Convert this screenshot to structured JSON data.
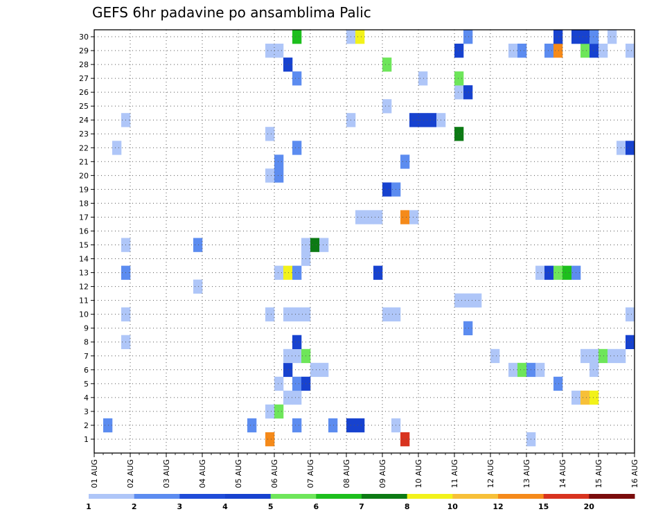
{
  "chart_data": {
    "type": "heatmap",
    "title": "GEFS 6hr padavine po ansamblima Palic",
    "xlabel": "",
    "ylabel": "",
    "x_tick_labels": [
      "01 AUG",
      "02 AUG",
      "03 AUG",
      "04 AUG",
      "05 AUG",
      "06 AUG",
      "07 AUG",
      "08 AUG",
      "09 AUG",
      "10 AUG",
      "11 AUG",
      "12 AUG",
      "13 AUG",
      "14 AUG",
      "15 AUG",
      "16 AUG"
    ],
    "y_tick_labels": [
      "1",
      "2",
      "3",
      "4",
      "5",
      "6",
      "7",
      "8",
      "9",
      "10",
      "11",
      "12",
      "13",
      "14",
      "15",
      "16",
      "17",
      "18",
      "19",
      "20",
      "21",
      "22",
      "23",
      "24",
      "25",
      "26",
      "27",
      "28",
      "29",
      "30"
    ],
    "xlim": [
      0,
      60
    ],
    "ylim": [
      0,
      30
    ],
    "grid": true,
    "colorbar": {
      "labels": [
        "1",
        "2",
        "3",
        "4",
        "5",
        "6",
        "7",
        "8",
        "10",
        "12",
        "15",
        "20"
      ],
      "colors": [
        "#afc6f8",
        "#5c8cf0",
        "#1f4cd8",
        "#1742cf",
        "#6ee65a",
        "#1dbf1d",
        "#0c7a14",
        "#f2f21a",
        "#f7c038",
        "#f58a1a",
        "#d8331f",
        "#7a0c0c"
      ]
    },
    "cells": [
      [
        0.0,
        1,
        "#ffffff"
      ],
      [
        19,
        1,
        "#f58a1a"
      ],
      [
        34,
        1,
        "#d8331f"
      ],
      [
        48,
        1,
        "#afc6f8"
      ],
      [
        17,
        2,
        "#5c8cf0"
      ],
      [
        22,
        2,
        "#5c8cf0"
      ],
      [
        26,
        2,
        "#5c8cf0"
      ],
      [
        28,
        2,
        "#1742cf"
      ],
      [
        29,
        2,
        "#1742cf"
      ],
      [
        33,
        2,
        "#afc6f8"
      ],
      [
        1,
        2,
        "#5c8cf0"
      ],
      [
        19,
        3,
        "#afc6f8"
      ],
      [
        20,
        3,
        "#6ee65a"
      ],
      [
        21,
        4,
        "#afc6f8"
      ],
      [
        22,
        4,
        "#afc6f8"
      ],
      [
        53,
        4,
        "#afc6f8"
      ],
      [
        54,
        4,
        "#f7c038"
      ],
      [
        55,
        4,
        "#f2f21a"
      ],
      [
        20,
        5,
        "#afc6f8"
      ],
      [
        22,
        5,
        "#5c8cf0"
      ],
      [
        23,
        5,
        "#1742cf"
      ],
      [
        51,
        5,
        "#5c8cf0"
      ],
      [
        21,
        6,
        "#1742cf"
      ],
      [
        24,
        6,
        "#afc6f8"
      ],
      [
        25,
        6,
        "#afc6f8"
      ],
      [
        46,
        6,
        "#afc6f8"
      ],
      [
        47,
        6,
        "#6ee65a"
      ],
      [
        48,
        6,
        "#5c8cf0"
      ],
      [
        49,
        6,
        "#afc6f8"
      ],
      [
        55,
        6,
        "#afc6f8"
      ],
      [
        21,
        7,
        "#afc6f8"
      ],
      [
        22,
        7,
        "#afc6f8"
      ],
      [
        23,
        7,
        "#6ee65a"
      ],
      [
        44,
        7,
        "#afc6f8"
      ],
      [
        54,
        7,
        "#afc6f8"
      ],
      [
        55,
        7,
        "#afc6f8"
      ],
      [
        56,
        7,
        "#6ee65a"
      ],
      [
        57,
        7,
        "#afc6f8"
      ],
      [
        58,
        7,
        "#afc6f8"
      ],
      [
        22,
        8,
        "#1742cf"
      ],
      [
        3,
        8,
        "#afc6f8"
      ],
      [
        59,
        8,
        "#1742cf"
      ],
      [
        41,
        9,
        "#5c8cf0"
      ],
      [
        3,
        10,
        "#afc6f8"
      ],
      [
        19,
        10,
        "#afc6f8"
      ],
      [
        21,
        10,
        "#afc6f8"
      ],
      [
        22,
        10,
        "#afc6f8"
      ],
      [
        23,
        10,
        "#afc6f8"
      ],
      [
        32,
        10,
        "#afc6f8"
      ],
      [
        33,
        10,
        "#afc6f8"
      ],
      [
        59,
        10,
        "#afc6f8"
      ],
      [
        40,
        11,
        "#afc6f8"
      ],
      [
        41,
        11,
        "#afc6f8"
      ],
      [
        42,
        11,
        "#afc6f8"
      ],
      [
        11,
        12,
        "#afc6f8"
      ],
      [
        3,
        13,
        "#5c8cf0"
      ],
      [
        20,
        13,
        "#afc6f8"
      ],
      [
        21,
        13,
        "#f2f21a"
      ],
      [
        22,
        13,
        "#5c8cf0"
      ],
      [
        31,
        13,
        "#1742cf"
      ],
      [
        49,
        13,
        "#afc6f8"
      ],
      [
        50,
        13,
        "#1742cf"
      ],
      [
        51,
        13,
        "#6ee65a"
      ],
      [
        52,
        13,
        "#1dbf1d"
      ],
      [
        53,
        13,
        "#5c8cf0"
      ],
      [
        23,
        14,
        "#afc6f8"
      ],
      [
        11,
        15,
        "#5c8cf0"
      ],
      [
        3,
        15,
        "#afc6f8"
      ],
      [
        23,
        15,
        "#afc6f8"
      ],
      [
        24,
        15,
        "#0c7a14"
      ],
      [
        25,
        15,
        "#afc6f8"
      ],
      [
        29,
        17,
        "#afc6f8"
      ],
      [
        30,
        17,
        "#afc6f8"
      ],
      [
        31,
        17,
        "#afc6f8"
      ],
      [
        34,
        17,
        "#f58a1a"
      ],
      [
        35,
        17,
        "#afc6f8"
      ],
      [
        32,
        19,
        "#1742cf"
      ],
      [
        33,
        19,
        "#5c8cf0"
      ],
      [
        19,
        20,
        "#afc6f8"
      ],
      [
        20,
        20,
        "#5c8cf0"
      ],
      [
        20,
        21,
        "#5c8cf0"
      ],
      [
        34,
        21,
        "#5c8cf0"
      ],
      [
        2,
        22,
        "#afc6f8"
      ],
      [
        22,
        22,
        "#5c8cf0"
      ],
      [
        58,
        22,
        "#afc6f8"
      ],
      [
        59,
        22,
        "#1742cf"
      ],
      [
        19,
        23,
        "#afc6f8"
      ],
      [
        40,
        23,
        "#0c7a14"
      ],
      [
        3,
        24,
        "#afc6f8"
      ],
      [
        28,
        24,
        "#afc6f8"
      ],
      [
        35,
        24,
        "#1742cf"
      ],
      [
        36,
        24,
        "#1742cf"
      ],
      [
        37,
        24,
        "#1742cf"
      ],
      [
        38,
        24,
        "#afc6f8"
      ],
      [
        32,
        25,
        "#afc6f8"
      ],
      [
        40,
        26,
        "#afc6f8"
      ],
      [
        41,
        26,
        "#1742cf"
      ],
      [
        22,
        27,
        "#5c8cf0"
      ],
      [
        36,
        27,
        "#afc6f8"
      ],
      [
        40,
        27,
        "#6ee65a"
      ],
      [
        21,
        28,
        "#1742cf"
      ],
      [
        32,
        28,
        "#6ee65a"
      ],
      [
        19,
        29,
        "#afc6f8"
      ],
      [
        20,
        29,
        "#afc6f8"
      ],
      [
        40,
        29,
        "#1742cf"
      ],
      [
        46,
        29,
        "#afc6f8"
      ],
      [
        47,
        29,
        "#5c8cf0"
      ],
      [
        50,
        29,
        "#5c8cf0"
      ],
      [
        51,
        29,
        "#f58a1a"
      ],
      [
        54,
        29,
        "#6ee65a"
      ],
      [
        55,
        29,
        "#1742cf"
      ],
      [
        56,
        29,
        "#afc6f8"
      ],
      [
        59,
        29,
        "#afc6f8"
      ],
      [
        22,
        30,
        "#1dbf1d"
      ],
      [
        28,
        30,
        "#afc6f8"
      ],
      [
        29,
        30,
        "#f2f21a"
      ],
      [
        41,
        30,
        "#5c8cf0"
      ],
      [
        51,
        30,
        "#1742cf"
      ],
      [
        53,
        30,
        "#1742cf"
      ],
      [
        54,
        30,
        "#1742cf"
      ],
      [
        55,
        30,
        "#5c8cf0"
      ],
      [
        57,
        30,
        "#afc6f8"
      ]
    ]
  }
}
